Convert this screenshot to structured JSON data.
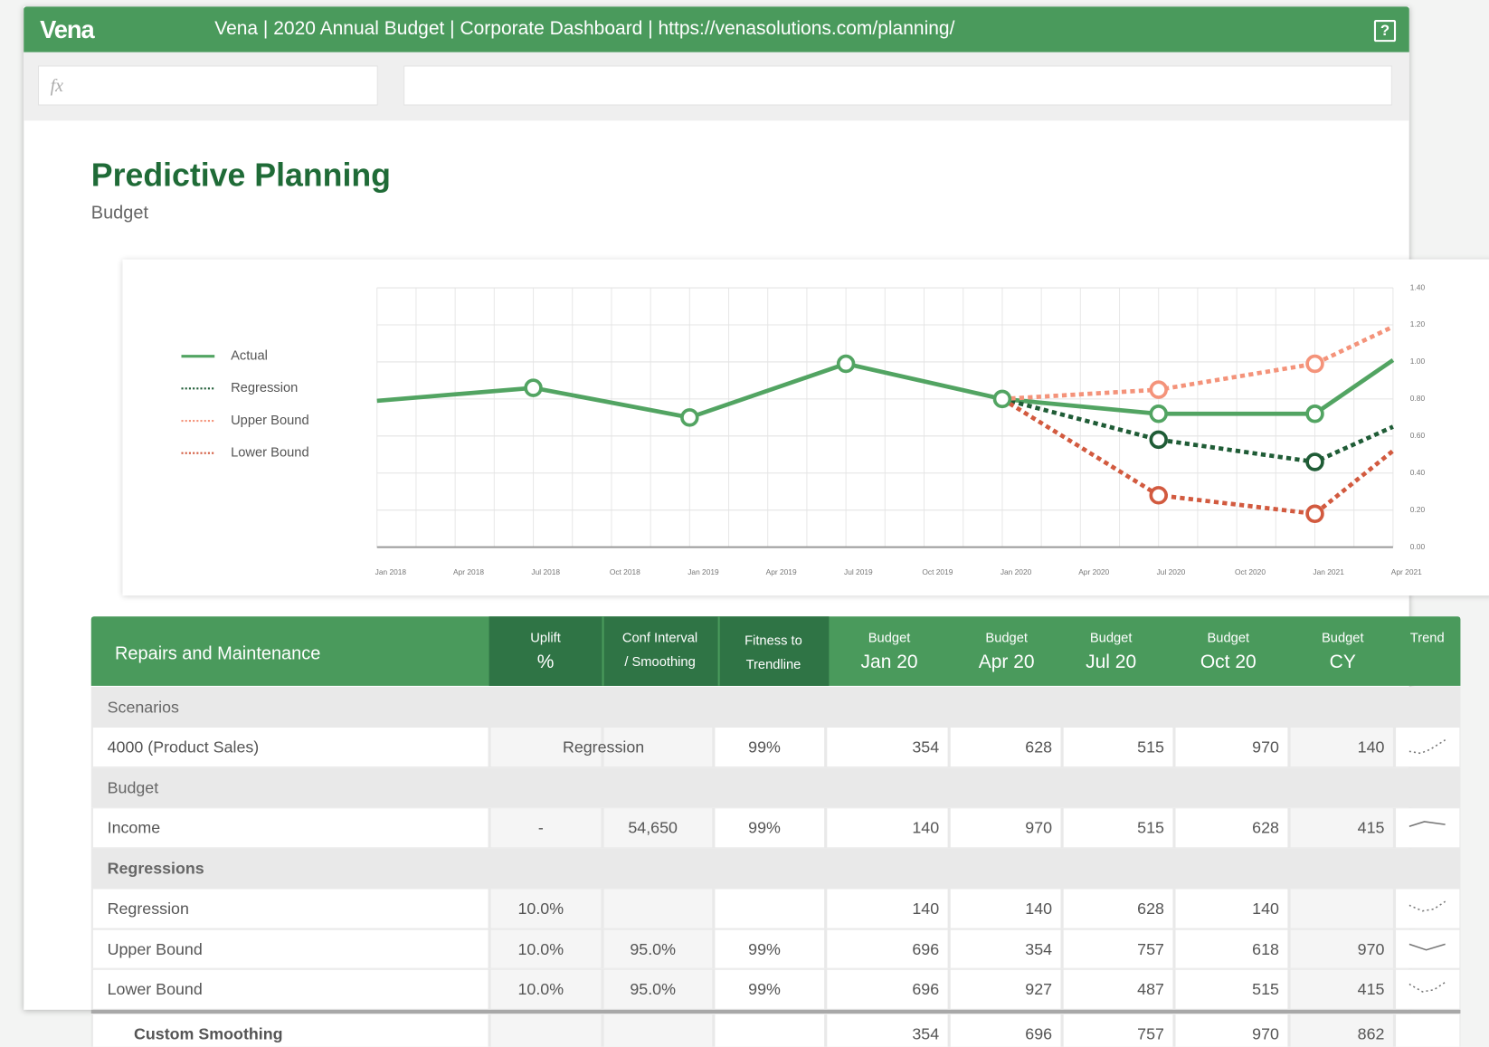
{
  "header": {
    "logo": "Vena",
    "title": "Vena | 2020 Annual Budget | Corporate Dashboard | https://venasolutions.com/planning/",
    "help": "?"
  },
  "formula_bar": {
    "placeholder": "fx"
  },
  "page": {
    "title": "Predictive Planning",
    "subtitle": "Budget"
  },
  "chart_data": {
    "type": "line",
    "categories": [
      "Jan 2018",
      "Apr 2018",
      "Jul 2018",
      "Oct 2018",
      "Jan 2019",
      "Apr 2019",
      "Jul 2019",
      "Oct 2019",
      "Jan 2020",
      "Apr 2020",
      "Jul 2020",
      "Oct 2020",
      "Jan 2021",
      "Apr 2021"
    ],
    "series": [
      {
        "name": "Actual",
        "color": "#52a462",
        "style": "solid",
        "x": [
          "Jan 2018",
          "Jul 2018",
          "Jan 2019",
          "Jul 2019",
          "Jan 2020",
          "Jul 2020",
          "Jan 2021",
          "Apr 2021"
        ],
        "values": [
          0.79,
          0.86,
          0.7,
          0.99,
          0.8,
          0.72,
          0.72,
          1.01
        ]
      },
      {
        "name": "Regression",
        "color": "#1f5c36",
        "style": "dotted",
        "x": [
          "Jan 2020",
          "Jul 2020",
          "Jan 2021",
          "Apr 2021"
        ],
        "values": [
          0.8,
          0.58,
          0.46,
          0.65
        ]
      },
      {
        "name": "Upper Bound",
        "color": "#f4937a",
        "style": "dotted",
        "x": [
          "Jan 2020",
          "Jul 2020",
          "Jan 2021",
          "Apr 2021"
        ],
        "values": [
          0.8,
          0.85,
          0.99,
          1.19
        ]
      },
      {
        "name": "Lower Bound",
        "color": "#d25a3f",
        "style": "dotted",
        "x": [
          "Jan 2020",
          "Jul 2020",
          "Jan 2021",
          "Apr 2021"
        ],
        "values": [
          0.8,
          0.28,
          0.18,
          0.52
        ]
      }
    ],
    "ylim": [
      0,
      1.4
    ],
    "yticks": [
      {
        "value": 0,
        "label": "0.00"
      },
      {
        "value": 0.2,
        "label": "0.20"
      },
      {
        "value": 0.4,
        "label": "0.40"
      },
      {
        "value": 0.6,
        "label": "0.60"
      },
      {
        "value": 0.8,
        "label": "0.80"
      },
      {
        "value": 1,
        "label": "1.00"
      },
      {
        "value": 1.2,
        "label": "1.20"
      },
      {
        "value": 1.4,
        "label": "1.40"
      }
    ],
    "grid": true,
    "legend": "left"
  },
  "table": {
    "title": "Repairs and Maintenance",
    "columns": [
      {
        "top": "Uplift",
        "bottom": "%"
      },
      {
        "top": "Conf Interval",
        "bottom": "/ Smoothing"
      },
      {
        "top": "Fitness to",
        "bottom": "Trendline"
      },
      {
        "top": "Budget",
        "bottom": "Jan 20"
      },
      {
        "top": "Budget",
        "bottom": "Apr 20"
      },
      {
        "top": "Budget",
        "bottom": "Jul 20"
      },
      {
        "top": "Budget",
        "bottom": "Oct 20"
      },
      {
        "top": "Budget",
        "bottom": "CY"
      },
      {
        "top": "Trend"
      }
    ],
    "rows": [
      {
        "section": "Scenarios"
      },
      {
        "label": "4000 (Product Sales)",
        "method": "Regression",
        "cells": [
          null,
          null,
          "99%",
          354,
          628,
          515,
          970,
          140
        ]
      },
      {
        "section": "Budget"
      },
      {
        "label": "Income",
        "cells": [
          "-",
          "54,650",
          "99%",
          140,
          970,
          515,
          628,
          415
        ]
      },
      {
        "section": "Regressions",
        "bold": true
      },
      {
        "label": "Regression",
        "cells": [
          "10.0%",
          null,
          null,
          140,
          140,
          628,
          140,
          null
        ]
      },
      {
        "label": "Upper Bound",
        "cells": [
          "10.0%",
          "95.0%",
          "99%",
          696,
          354,
          757,
          618,
          970
        ]
      },
      {
        "label": "Lower Bound",
        "cells": [
          "10.0%",
          "95.0%",
          "99%",
          696,
          927,
          487,
          515,
          415
        ]
      },
      {
        "label": "Custom Smoothing",
        "bold": true,
        "cells": [
          null,
          null,
          null,
          354,
          696,
          757,
          970,
          862
        ]
      }
    ]
  }
}
